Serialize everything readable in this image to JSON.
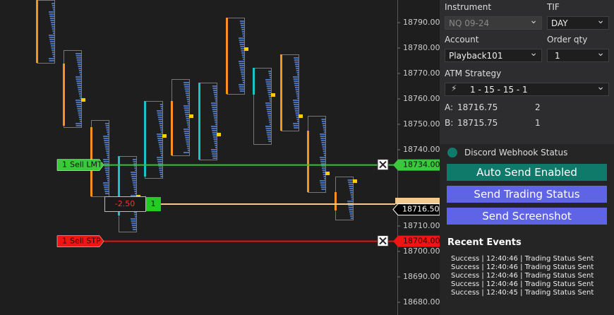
{
  "price_axis": {
    "ticks": [
      {
        "value": 18790,
        "label": "18790.00"
      },
      {
        "value": 18780,
        "label": "18780.00"
      },
      {
        "value": 18770,
        "label": "18770.00"
      },
      {
        "value": 18760,
        "label": "18760.00"
      },
      {
        "value": 18750,
        "label": "18750.00"
      },
      {
        "value": 18740,
        "label": "18740.00"
      },
      {
        "value": 18710,
        "label": "18710.00"
      },
      {
        "value": 18700,
        "label": "18700.00"
      },
      {
        "value": 18690,
        "label": "18690.00"
      },
      {
        "value": 18680,
        "label": "18680.00"
      }
    ]
  },
  "orders": [
    {
      "qty": "1",
      "label": "Sell LMT",
      "price": {
        "value": 18734,
        "label": "18734.00"
      },
      "color": "#3cc83c",
      "line": "#35c235"
    },
    {
      "qty": "1",
      "label": "Sell STP",
      "price": {
        "value": 18704,
        "label": "18704.00"
      },
      "color": "#f01414",
      "line": "#e81010"
    }
  ],
  "position": {
    "pnl": "-2.50",
    "qty": "1",
    "price": {
      "value": 18716.5,
      "label": "18716.50"
    }
  },
  "panel": {
    "instrument_label": "Instrument",
    "instrument": "NQ 09-24",
    "tif_label": "TIF",
    "tif": "DAY",
    "account_label": "Account",
    "account": "Playback101",
    "qty_label": "Order qty",
    "qty": "1",
    "atm_label": "ATM Strategy",
    "atm": "1 - 15 - 15 - 1",
    "ask": {
      "label": "A:",
      "price": "18716.75",
      "size": "2"
    },
    "bid": {
      "label": "B:",
      "price": "18715.75",
      "size": "1"
    },
    "webhook_status": "Discord Webhook Status",
    "buttons": [
      "Auto Send Enabled",
      "Send Trading Status",
      "Send Screenshot"
    ],
    "events_title": "Recent Events",
    "events": [
      "Success | 12:40:46 | Trading Status Sent",
      "Success | 12:40:46 | Trading Status Sent",
      "Success | 12:40:46 | Trading Status Sent",
      "Success | 12:40:46 | Trading Status Sent",
      "Success | 12:40:45 | Trading Status Sent"
    ]
  }
}
